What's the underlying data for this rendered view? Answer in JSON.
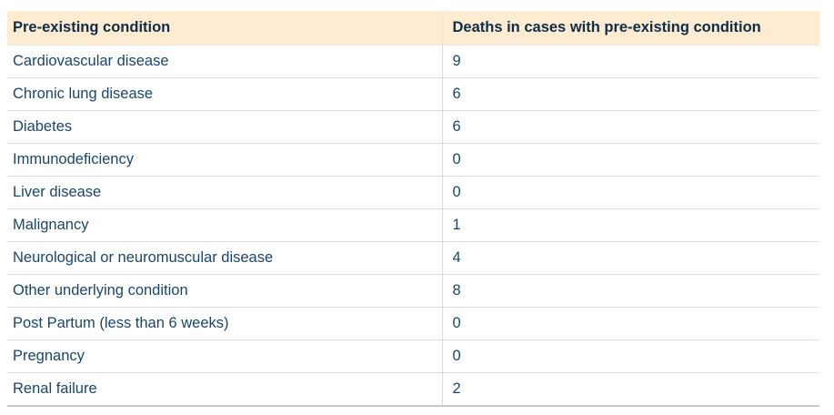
{
  "colors": {
    "page_background": "#ffffff",
    "header_background": "#fdebd2",
    "header_text": "#0e2e47",
    "body_text": "#1b4668",
    "row_divider": "#dcdcdc",
    "header_column_divider": "#f3dfc1",
    "bottom_border": "#c6c8c2"
  },
  "table": {
    "columns": [
      {
        "label": "Pre-existing condition"
      },
      {
        "label": "Deaths in cases with pre-existing condition"
      }
    ],
    "rows": [
      {
        "condition": "Cardiovascular disease",
        "deaths": "9"
      },
      {
        "condition": "Chronic lung disease",
        "deaths": "6"
      },
      {
        "condition": "Diabetes",
        "deaths": "6"
      },
      {
        "condition": "Immunodeficiency",
        "deaths": "0"
      },
      {
        "condition": "Liver disease",
        "deaths": "0"
      },
      {
        "condition": "Malignancy",
        "deaths": "1"
      },
      {
        "condition": "Neurological or neuromuscular disease",
        "deaths": "4"
      },
      {
        "condition": "Other underlying condition",
        "deaths": "8"
      },
      {
        "condition": "Post Partum (less than 6 weeks)",
        "deaths": "0"
      },
      {
        "condition": "Pregnancy",
        "deaths": "0"
      },
      {
        "condition": "Renal failure",
        "deaths": "2"
      }
    ]
  },
  "chart_data": {
    "type": "table",
    "title": "",
    "columns": [
      "Pre-existing condition",
      "Deaths in cases with pre-existing condition"
    ],
    "categories": [
      "Cardiovascular disease",
      "Chronic lung disease",
      "Diabetes",
      "Immunodeficiency",
      "Liver disease",
      "Malignancy",
      "Neurological or neuromuscular disease",
      "Other underlying condition",
      "Post Partum (less than 6 weeks)",
      "Pregnancy",
      "Renal failure"
    ],
    "values": [
      9,
      6,
      6,
      0,
      0,
      1,
      4,
      8,
      0,
      0,
      2
    ]
  }
}
